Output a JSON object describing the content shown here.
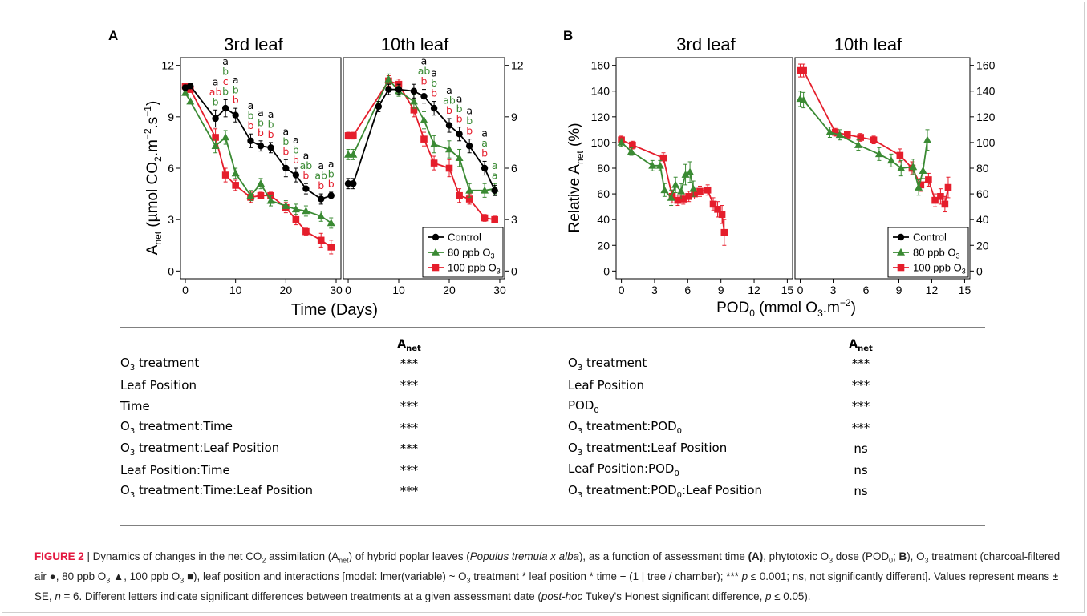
{
  "panels": [
    {
      "label": "A",
      "titles": [
        "3rd leaf",
        "10th leaf"
      ],
      "xlabel": "Time (Days)",
      "ylabel": "A_net (µmol CO2.m-2.s-1)"
    },
    {
      "label": "B",
      "titles": [
        "3rd leaf",
        "10th leaf"
      ],
      "xlabel": "POD0 (mmol O3.m-2)",
      "ylabel": "Relative A_net (%)"
    }
  ],
  "legend": [
    "Control",
    "80 ppb O3",
    "100 ppb O3"
  ],
  "colors": {
    "control": "#000000",
    "o80": "#3a8a33",
    "o100": "#e51d2b"
  },
  "chart_data": [
    {
      "type": "line",
      "panel": "A",
      "facet": "3rd leaf",
      "xlabel": "Time (Days)",
      "ylabel": "Anet (µmol CO2.m-2.s-1)",
      "xlim": [
        0,
        30
      ],
      "ylim": [
        0,
        12
      ],
      "xticks": [
        "0",
        "10",
        "20",
        "30"
      ],
      "xtick_values": [
        0,
        10,
        20,
        30
      ],
      "yticks": [
        "0",
        "3",
        "6",
        "9",
        "12"
      ],
      "ytick_values": [
        0,
        3,
        6,
        9,
        12
      ],
      "series": [
        {
          "name": "Control",
          "x": [
            0,
            1,
            6,
            8,
            10,
            13,
            15,
            17,
            20,
            22,
            24,
            27,
            29
          ],
          "y": [
            10.7,
            10.8,
            8.9,
            9.5,
            9.1,
            7.6,
            7.3,
            7.2,
            6.0,
            5.6,
            4.8,
            4.2,
            4.4
          ],
          "err": [
            0.15,
            0.15,
            0.5,
            0.5,
            0.4,
            0.4,
            0.3,
            0.3,
            0.5,
            0.4,
            0.3,
            0.3,
            0.2
          ]
        },
        {
          "name": "80 ppb O3",
          "x": [
            0,
            1,
            6,
            8,
            10,
            13,
            15,
            17,
            20,
            22,
            24,
            27,
            29
          ],
          "y": [
            10.4,
            9.9,
            7.3,
            7.8,
            5.7,
            4.4,
            5.1,
            4.1,
            3.8,
            3.6,
            3.5,
            3.2,
            2.8
          ],
          "err": [
            0.15,
            0.15,
            0.4,
            0.4,
            0.3,
            0.3,
            0.3,
            0.3,
            0.3,
            0.3,
            0.3,
            0.3,
            0.3
          ]
        },
        {
          "name": "100 ppb O3",
          "x": [
            0,
            1,
            6,
            8,
            10,
            13,
            15,
            17,
            20,
            22,
            24,
            27,
            29
          ],
          "y": [
            10.8,
            10.6,
            7.8,
            5.6,
            5.0,
            4.3,
            4.4,
            4.4,
            3.7,
            3.0,
            2.3,
            1.8,
            1.4
          ],
          "err": [
            0.15,
            0.15,
            0.5,
            0.4,
            0.3,
            0.3,
            0.2,
            0.2,
            0.3,
            0.3,
            0.2,
            0.4,
            0.4
          ]
        }
      ],
      "annotations": [
        {
          "x": 6,
          "letters": [
            [
              "a",
              "control"
            ],
            [
              "ab",
              "o100"
            ],
            [
              "b",
              "o80"
            ]
          ]
        },
        {
          "x": 8,
          "letters": [
            [
              "a",
              "control"
            ],
            [
              "b",
              "o80"
            ],
            [
              "c",
              "o100"
            ],
            [
              "b",
              "o80"
            ]
          ]
        },
        {
          "x": 10,
          "letters": [
            [
              "a",
              "control"
            ],
            [
              "b",
              "o80"
            ],
            [
              "b",
              "o100"
            ]
          ]
        },
        {
          "x": 13,
          "letters": [
            [
              "a",
              "control"
            ],
            [
              "b",
              "o80"
            ],
            [
              "b",
              "o100"
            ]
          ]
        },
        {
          "x": 15,
          "letters": [
            [
              "a",
              "control"
            ],
            [
              "b",
              "o80"
            ],
            [
              "b",
              "o100"
            ]
          ]
        },
        {
          "x": 17,
          "letters": [
            [
              "a",
              "control"
            ],
            [
              "b",
              "o80"
            ],
            [
              "b",
              "o100"
            ]
          ]
        },
        {
          "x": 20,
          "letters": [
            [
              "a",
              "control"
            ],
            [
              "b",
              "o80"
            ],
            [
              "b",
              "o100"
            ]
          ]
        },
        {
          "x": 22,
          "letters": [
            [
              "a",
              "control"
            ],
            [
              "b",
              "o80"
            ],
            [
              "b",
              "o100"
            ]
          ]
        },
        {
          "x": 24,
          "letters": [
            [
              "a",
              "control"
            ],
            [
              "ab",
              "o80"
            ],
            [
              "b",
              "o100"
            ]
          ]
        },
        {
          "x": 27,
          "letters": [
            [
              "a",
              "control"
            ],
            [
              "ab",
              "o80"
            ],
            [
              "b",
              "o100"
            ]
          ]
        },
        {
          "x": 29,
          "letters": [
            [
              "a",
              "control"
            ],
            [
              "b",
              "o80"
            ],
            [
              "b",
              "o100"
            ]
          ]
        }
      ]
    },
    {
      "type": "line",
      "panel": "A",
      "facet": "10th leaf",
      "xlabel": "Time (Days)",
      "ylabel": "Anet (µmol CO2.m-2.s-1)",
      "xlim": [
        0,
        30
      ],
      "ylim": [
        0,
        12
      ],
      "xticks": [
        "0",
        "10",
        "20",
        "30"
      ],
      "xtick_values": [
        0,
        10,
        20,
        30
      ],
      "yticks": [
        "0",
        "3",
        "6",
        "9",
        "12"
      ],
      "ytick_values": [
        0,
        3,
        6,
        9,
        12
      ],
      "series": [
        {
          "name": "Control",
          "x": [
            0,
            1,
            6,
            8,
            10,
            13,
            15,
            17,
            20,
            22,
            24,
            27,
            29
          ],
          "y": [
            5.1,
            5.1,
            9.6,
            10.6,
            10.6,
            10.5,
            10.2,
            9.5,
            8.5,
            8.0,
            7.3,
            6.0,
            4.7
          ],
          "err": [
            0.3,
            0.3,
            0.3,
            0.3,
            0.3,
            0.4,
            0.4,
            0.4,
            0.4,
            0.4,
            0.4,
            0.4,
            0.3
          ]
        },
        {
          "name": "80 ppb O3",
          "x": [
            0,
            1,
            8,
            10,
            13,
            15,
            17,
            20,
            22,
            24,
            27,
            29
          ],
          "y": [
            6.8,
            6.8,
            11.2,
            10.5,
            9.9,
            8.8,
            7.4,
            7.1,
            6.6,
            4.7,
            4.7,
            4.8
          ],
          "err": [
            0.3,
            0.3,
            0.3,
            0.3,
            0.4,
            0.5,
            0.5,
            0.5,
            0.5,
            0.4,
            0.4,
            0.3
          ]
        },
        {
          "name": "100 ppb O3",
          "x": [
            0,
            1,
            8,
            10,
            13,
            15,
            17,
            20,
            22,
            24,
            27,
            29
          ],
          "y": [
            7.9,
            7.9,
            11.1,
            10.9,
            9.4,
            7.7,
            6.3,
            6.0,
            4.4,
            4.2,
            3.1,
            3.0
          ],
          "err": [
            0.2,
            0.2,
            0.3,
            0.3,
            0.4,
            0.4,
            0.4,
            0.5,
            0.4,
            0.3,
            0.2,
            0.2
          ]
        }
      ],
      "annotations": [
        {
          "x": 15,
          "letters": [
            [
              "a",
              "control"
            ],
            [
              "ab",
              "o80"
            ],
            [
              "b",
              "o100"
            ]
          ]
        },
        {
          "x": 17,
          "letters": [
            [
              "a",
              "control"
            ],
            [
              "b",
              "o80"
            ],
            [
              "b",
              "o100"
            ]
          ]
        },
        {
          "x": 20,
          "letters": [
            [
              "a",
              "control"
            ],
            [
              "ab",
              "o80"
            ],
            [
              "b",
              "o100"
            ]
          ]
        },
        {
          "x": 22,
          "letters": [
            [
              "a",
              "control"
            ],
            [
              "b",
              "o80"
            ],
            [
              "b",
              "o100"
            ]
          ]
        },
        {
          "x": 24,
          "letters": [
            [
              "a",
              "control"
            ],
            [
              "b",
              "o80"
            ],
            [
              "b",
              "o100"
            ]
          ]
        },
        {
          "x": 27,
          "letters": [
            [
              "a",
              "control"
            ],
            [
              "a",
              "o80"
            ],
            [
              "b",
              "o100"
            ]
          ]
        },
        {
          "x": 29,
          "letters": [
            [
              "a",
              "o80"
            ],
            [
              "a",
              "o80"
            ]
          ]
        }
      ]
    },
    {
      "type": "line",
      "panel": "B",
      "facet": "3rd leaf",
      "xlabel": "POD0 (mmol O3.m-2)",
      "ylabel": "Relative Anet (%)",
      "xlim": [
        0,
        15
      ],
      "ylim": [
        0,
        160
      ],
      "xticks": [
        "0",
        "3",
        "6",
        "9",
        "12",
        "15"
      ],
      "xtick_values": [
        0,
        3,
        6,
        9,
        12,
        15
      ],
      "yticks": [
        "0",
        "20",
        "40",
        "60",
        "80",
        "100",
        "120",
        "140",
        "160"
      ],
      "ytick_values": [
        0,
        20,
        40,
        60,
        80,
        100,
        120,
        140,
        160
      ],
      "series": [
        {
          "name": "80 ppb O3",
          "x": [
            0,
            0.9,
            2.8,
            3.5,
            3.9,
            4.5,
            4.9,
            5.4,
            5.8,
            6.2,
            6.5
          ],
          "y": [
            100,
            93,
            82,
            82,
            63,
            57,
            67,
            62,
            75,
            77,
            64
          ],
          "err": [
            3,
            3,
            4,
            4,
            5,
            6,
            6,
            6,
            8,
            8,
            6
          ]
        },
        {
          "name": "100 ppb O3",
          "x": [
            0,
            1,
            3.8,
            4.6,
            5.1,
            5.6,
            6.1,
            6.6,
            7.1,
            7.8,
            8.3,
            8.7,
            9.1,
            9.3
          ],
          "y": [
            102,
            98,
            88,
            58,
            55,
            56,
            58,
            60,
            62,
            63,
            52,
            48,
            44,
            30
          ],
          "err": [
            3,
            3,
            4,
            5,
            4,
            4,
            4,
            4,
            4,
            4,
            5,
            6,
            7,
            10
          ]
        }
      ]
    },
    {
      "type": "line",
      "panel": "B",
      "facet": "10th leaf",
      "xlabel": "POD0 (mmol O3.m-2)",
      "ylabel": "Relative Anet (%)",
      "xlim": [
        0,
        15
      ],
      "ylim": [
        0,
        160
      ],
      "xticks": [
        "0",
        "3",
        "6",
        "9",
        "12",
        "15"
      ],
      "xtick_values": [
        0,
        3,
        6,
        9,
        12,
        15
      ],
      "yticks": [
        "0",
        "20",
        "40",
        "60",
        "80",
        "100",
        "120",
        "140",
        "160"
      ],
      "ytick_values": [
        0,
        20,
        40,
        60,
        80,
        100,
        120,
        140,
        160
      ],
      "series": [
        {
          "name": "80 ppb O3",
          "x": [
            0,
            0.3,
            2.7,
            3.6,
            5.3,
            7.2,
            8.3,
            9.2,
            10.3,
            10.8,
            11.2,
            11.6
          ],
          "y": [
            134,
            133,
            108,
            106,
            98,
            91,
            86,
            80,
            81,
            65,
            78,
            102
          ],
          "err": [
            6,
            6,
            4,
            4,
            4,
            5,
            5,
            6,
            6,
            6,
            6,
            8
          ]
        },
        {
          "name": "100 ppb O3",
          "x": [
            0,
            0.3,
            3.2,
            4.3,
            5.5,
            6.7,
            9.1,
            10.2,
            11.0,
            11.7,
            12.3,
            12.8,
            13.2,
            13.5
          ],
          "y": [
            156,
            156,
            108,
            106,
            104,
            102,
            90,
            80,
            67,
            71,
            55,
            58,
            52,
            65
          ],
          "err": [
            5,
            5,
            3,
            3,
            3,
            3,
            5,
            5,
            5,
            5,
            5,
            6,
            6,
            8
          ]
        }
      ]
    }
  ],
  "table_left": {
    "header": "Anet",
    "rows": [
      {
        "label": "O3 treatment",
        "sig": "***"
      },
      {
        "label": "Leaf Position",
        "sig": "***"
      },
      {
        "label": "Time",
        "sig": "***"
      },
      {
        "label": "O3 treatment:Time",
        "sig": "***"
      },
      {
        "label": "O3 treatment:Leaf Position",
        "sig": "***"
      },
      {
        "label": "Leaf Position:Time",
        "sig": "***"
      },
      {
        "label": "O3 treatment:Time:Leaf Position",
        "sig": "***"
      }
    ]
  },
  "table_right": {
    "header": "Anet",
    "rows": [
      {
        "label": "O3 treatment",
        "sig": "***"
      },
      {
        "label": "Leaf Position",
        "sig": "***"
      },
      {
        "label": "POD0",
        "sig": "***"
      },
      {
        "label": "O3 treatment:POD0",
        "sig": "***"
      },
      {
        "label": "O3 treatment:Leaf Position",
        "sig": "ns"
      },
      {
        "label": "Leaf Position:POD0",
        "sig": "ns"
      },
      {
        "label": "O3 treatment:POD0:Leaf Position",
        "sig": "ns"
      }
    ]
  },
  "caption": {
    "figure_label": "FIGURE 2",
    "text": "| Dynamics of changes in the net CO2 assimilation (Anet) of hybrid poplar leaves (Populus tremula x alba), as a function of assessment time (A), phytotoxic O3 dose (POD0; B), O3 treatment (charcoal-filtered air ●, 80 ppb O3 ▲, 100 ppb O3 ■), leaf position and interactions [model: lmer(variable) ~ O3 treatment * leaf position * time + (1 | tree / chamber); *** p ≤ 0.001; ns, not significantly different]. Values represent means ± SE, n = 6. Different letters indicate significant differences between treatments at a given assessment date (post-hoc Tukey's Honest significant difference, p ≤ 0.05)."
  }
}
